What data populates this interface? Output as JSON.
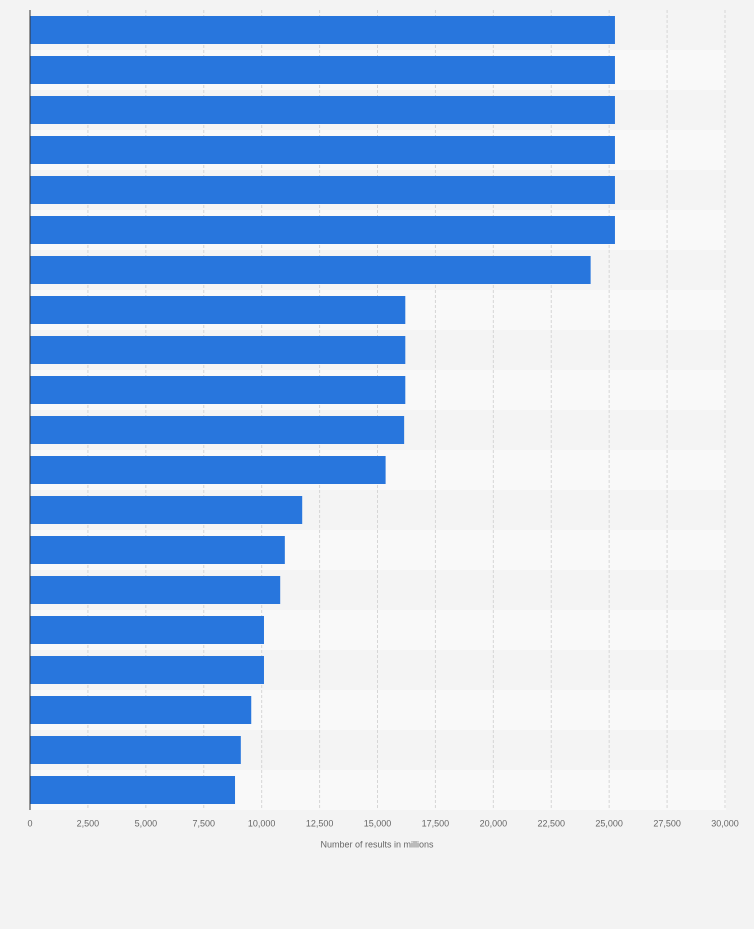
{
  "chart_data": {
    "type": "bar",
    "orientation": "horizontal",
    "x_label": "Number of results in millions",
    "categories": [
      null,
      null,
      null,
      null,
      null,
      null,
      null,
      null,
      null,
      null,
      null,
      null,
      null,
      null,
      null,
      null,
      null,
      null,
      null,
      null
    ],
    "values": [
      25250,
      25250,
      25250,
      25250,
      25250,
      25250,
      24200,
      16200,
      16200,
      16200,
      16150,
      15350,
      11750,
      11000,
      10800,
      10100,
      10100,
      9550,
      9100,
      8850
    ],
    "color": "#2876dd",
    "xlim": [
      0,
      30000
    ],
    "xticks": [
      0,
      {
        "value": 2500,
        "label": "2,500"
      },
      {
        "value": 5000,
        "label": "5,000"
      },
      {
        "value": 7500,
        "label": "7,500"
      },
      {
        "value": 10000,
        "label": "10,000"
      },
      {
        "value": 12500,
        "label": "12,500"
      },
      {
        "value": 15000,
        "label": "15,000"
      },
      {
        "value": 17500,
        "label": "17,500"
      },
      {
        "value": 20000,
        "label": "20,000"
      },
      {
        "value": 22500,
        "label": "22,500"
      },
      {
        "value": 25000,
        "label": "25,000"
      },
      {
        "value": 27500,
        "label": "27,500"
      },
      {
        "value": 30000,
        "label": "30,000"
      }
    ],
    "grid": true
  }
}
